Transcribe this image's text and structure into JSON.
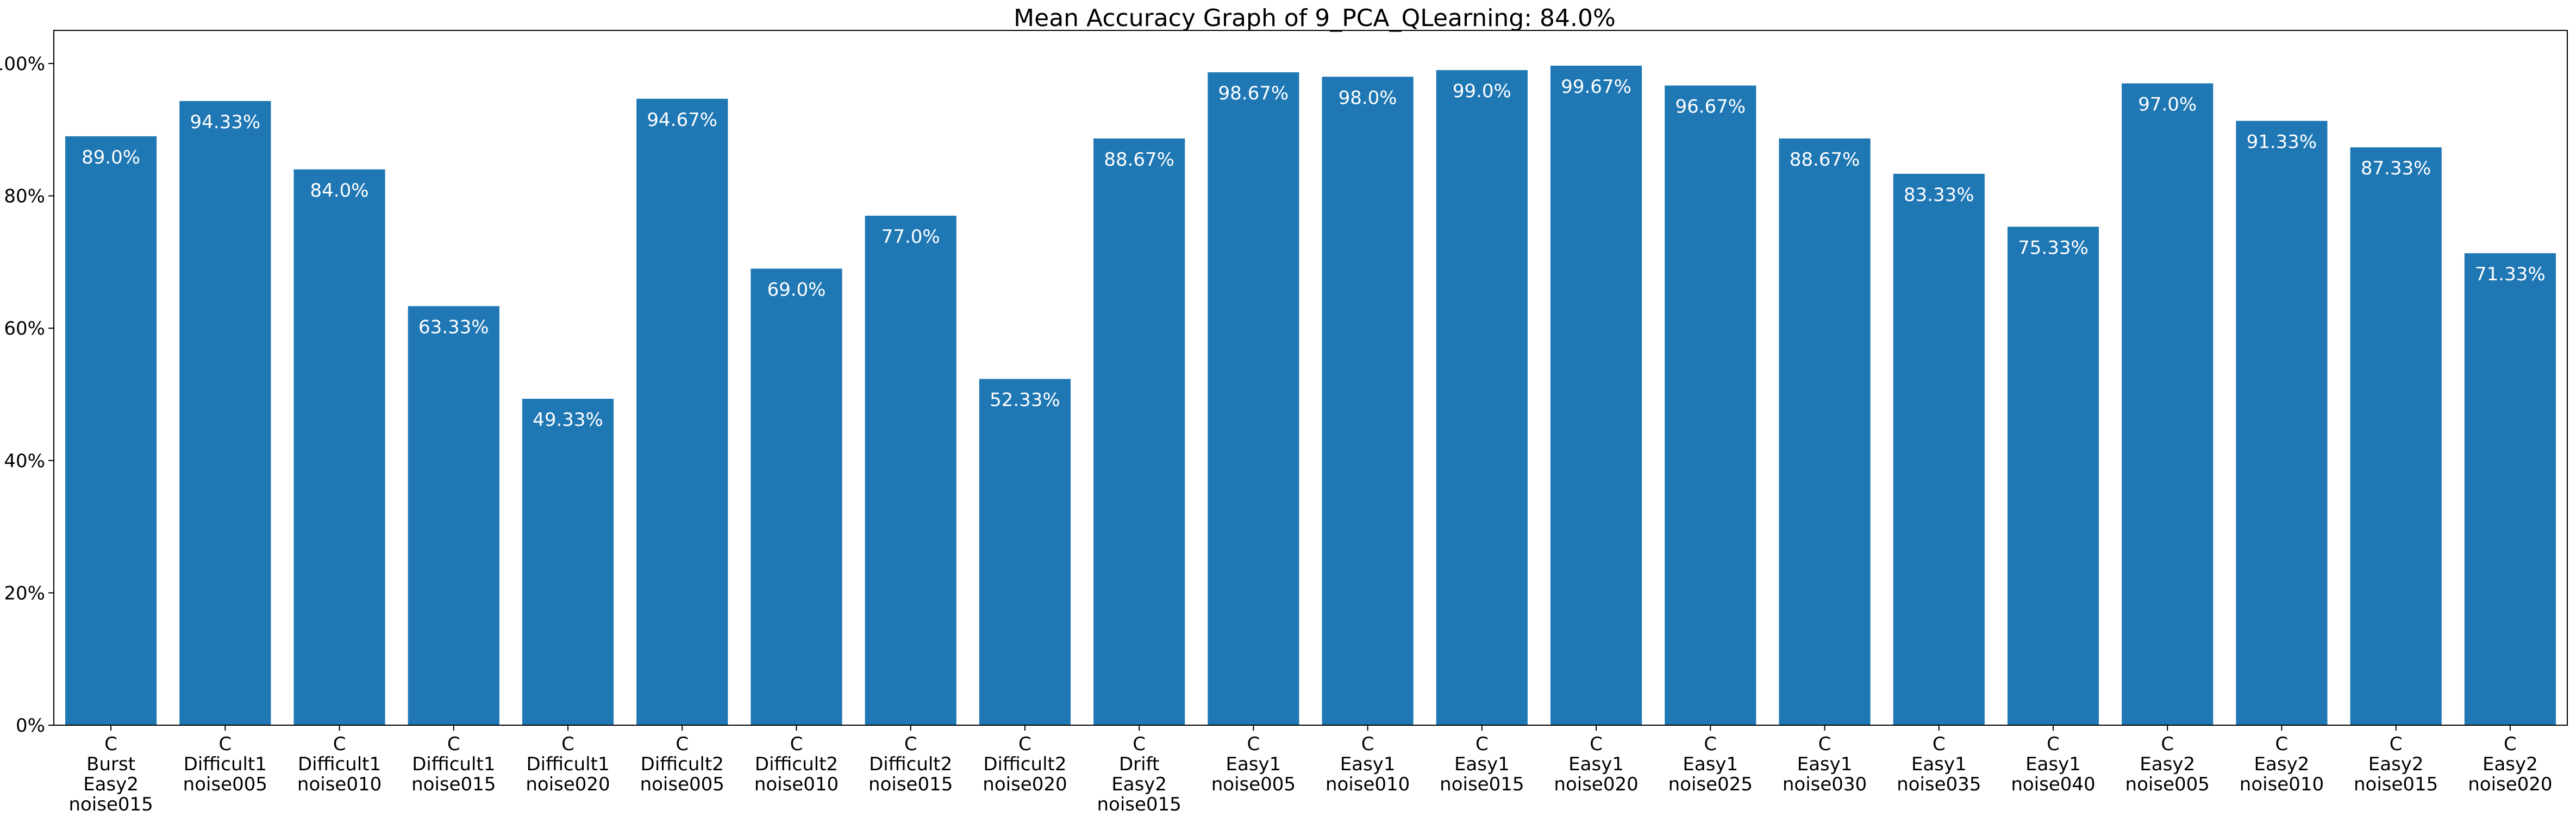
{
  "chart_data": {
    "type": "bar",
    "title": "Mean Accuracy Graph of 9_PCA_QLearning: 84.0%",
    "xlabel": "",
    "ylabel": "",
    "ylim": [
      0,
      105
    ],
    "yticks": [
      0,
      20,
      40,
      60,
      80,
      100
    ],
    "ytick_labels": [
      "0%",
      "20%",
      "40%",
      "60%",
      "80%",
      "100%"
    ],
    "bar_color": "#1f77b4",
    "data_label_color": "#ffffff",
    "grid": false,
    "categories": [
      [
        "C",
        "Burst",
        "Easy2",
        "noise015"
      ],
      [
        "C",
        "Difficult1",
        "noise005"
      ],
      [
        "C",
        "Difficult1",
        "noise010"
      ],
      [
        "C",
        "Difficult1",
        "noise015"
      ],
      [
        "C",
        "Difficult1",
        "noise020"
      ],
      [
        "C",
        "Difficult2",
        "noise005"
      ],
      [
        "C",
        "Difficult2",
        "noise010"
      ],
      [
        "C",
        "Difficult2",
        "noise015"
      ],
      [
        "C",
        "Difficult2",
        "noise020"
      ],
      [
        "C",
        "Drift",
        "Easy2",
        "noise015"
      ],
      [
        "C",
        "Easy1",
        "noise005"
      ],
      [
        "C",
        "Easy1",
        "noise010"
      ],
      [
        "C",
        "Easy1",
        "noise015"
      ],
      [
        "C",
        "Easy1",
        "noise020"
      ],
      [
        "C",
        "Easy1",
        "noise025"
      ],
      [
        "C",
        "Easy1",
        "noise030"
      ],
      [
        "C",
        "Easy1",
        "noise035"
      ],
      [
        "C",
        "Easy1",
        "noise040"
      ],
      [
        "C",
        "Easy2",
        "noise005"
      ],
      [
        "C",
        "Easy2",
        "noise010"
      ],
      [
        "C",
        "Easy2",
        "noise015"
      ],
      [
        "C",
        "Easy2",
        "noise020"
      ]
    ],
    "values": [
      89.0,
      94.33,
      84.0,
      63.33,
      49.33,
      94.67,
      69.0,
      77.0,
      52.33,
      88.67,
      98.67,
      98.0,
      99.0,
      99.67,
      96.67,
      88.67,
      83.33,
      75.33,
      97.0,
      91.33,
      87.33,
      71.33
    ],
    "labels": [
      "89.0%",
      "94.33%",
      "84.0%",
      "63.33%",
      "49.33%",
      "94.67%",
      "69.0%",
      "77.0%",
      "52.33%",
      "88.67%",
      "98.67%",
      "98.0%",
      "99.0%",
      "99.67%",
      "96.67%",
      "88.67%",
      "83.33%",
      "75.33%",
      "97.0%",
      "91.33%",
      "87.33%",
      "71.33%"
    ]
  }
}
